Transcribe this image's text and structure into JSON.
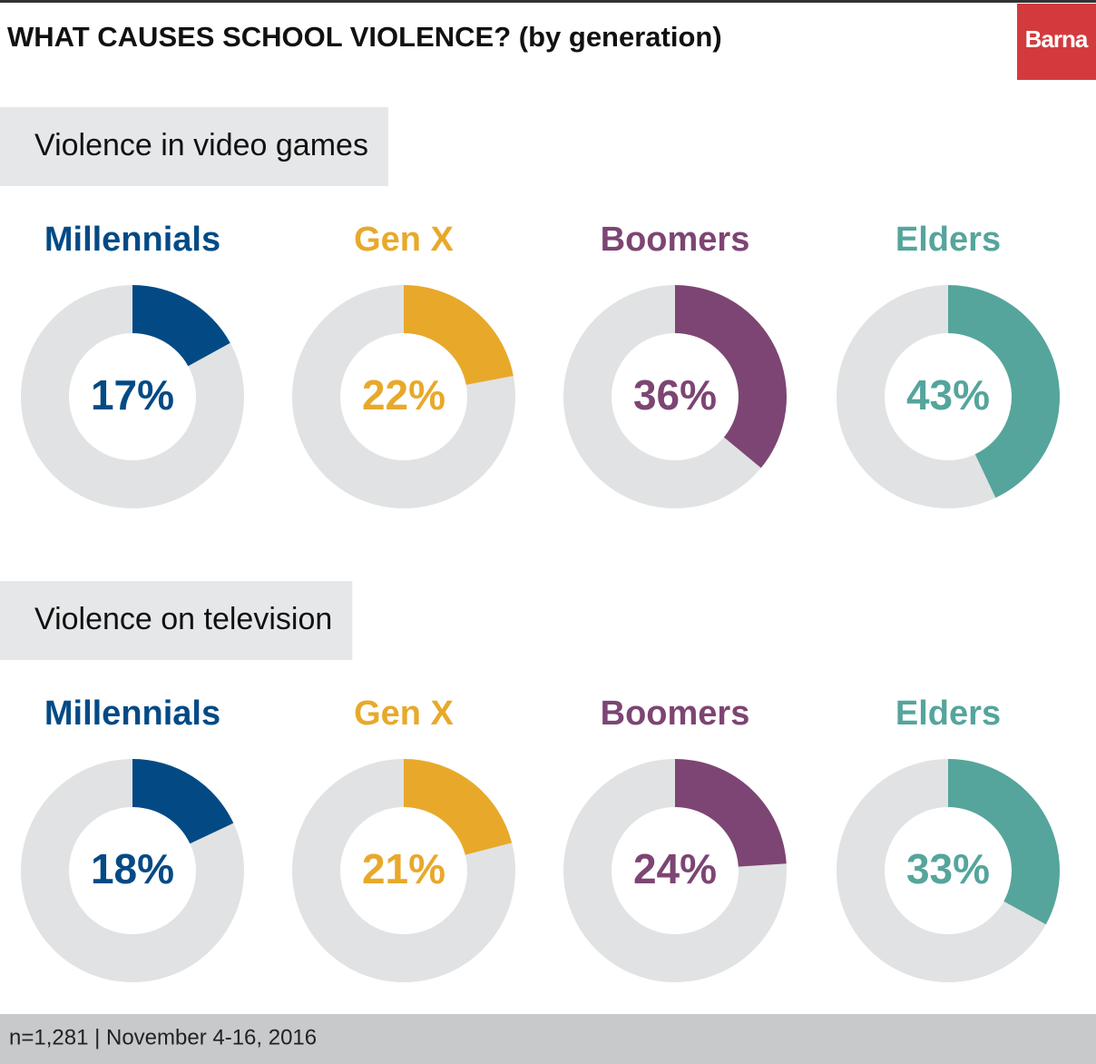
{
  "title": "WHAT CAUSES SCHOOL VIOLENCE?  (by generation)",
  "brand": "Barna",
  "note": "n=1,281 | November 4-16, 2016",
  "chart_data": [
    {
      "type": "donut",
      "title": "Violence in video games",
      "categories": [
        "Millennials",
        "Gen X",
        "Boomers",
        "Elders"
      ],
      "values": [
        17,
        22,
        36,
        43
      ],
      "value_labels": [
        "17%",
        "22%",
        "36%",
        "43%"
      ],
      "colors": [
        "#034a85",
        "#e8a92a",
        "#7d4573",
        "#55a59c"
      ],
      "track_color": "#e1e2e3"
    },
    {
      "type": "donut",
      "title": "Violence on television",
      "categories": [
        "Millennials",
        "Gen X",
        "Boomers",
        "Elders"
      ],
      "values": [
        18,
        21,
        24,
        33
      ],
      "value_labels": [
        "18%",
        "21%",
        "24%",
        "33%"
      ],
      "colors": [
        "#034a85",
        "#e8a92a",
        "#7d4573",
        "#55a59c"
      ],
      "track_color": "#e1e2e3"
    }
  ]
}
